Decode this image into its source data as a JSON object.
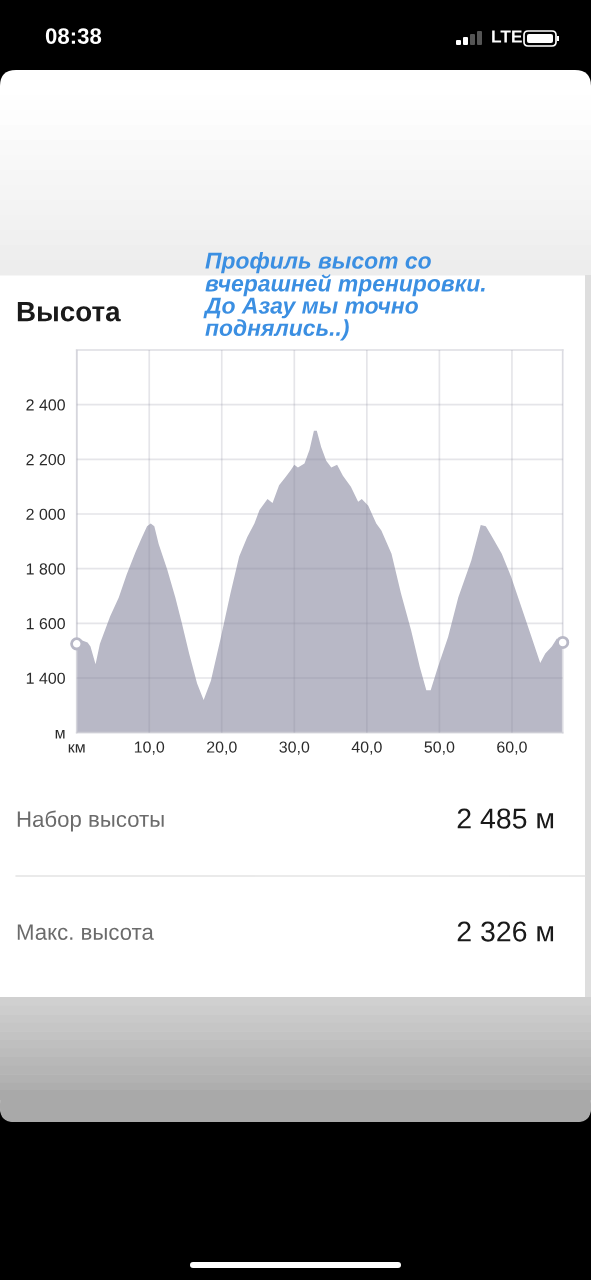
{
  "chart_data": {
    "type": "area",
    "title": "Высота",
    "xlim": [
      0,
      67
    ],
    "ylim": [
      1200,
      2600
    ],
    "xticks": [
      {
        "value": 0,
        "label": "км"
      },
      {
        "value": 10,
        "label": "10,0"
      },
      {
        "value": 20,
        "label": "20,0"
      },
      {
        "value": 30,
        "label": "30,0"
      },
      {
        "value": 40,
        "label": "40,0"
      },
      {
        "value": 50,
        "label": "50,0"
      },
      {
        "value": 60,
        "label": "60,0"
      }
    ],
    "yticks": [
      {
        "value": 1200,
        "label": "м"
      },
      {
        "value": 1400,
        "label": "1 400"
      },
      {
        "value": 1600,
        "label": "1 600"
      },
      {
        "value": 1800,
        "label": "1 800"
      },
      {
        "value": 2000,
        "label": "2 000"
      },
      {
        "value": 2200,
        "label": "2 200"
      },
      {
        "value": 2400,
        "label": "2 400"
      }
    ],
    "grid": true,
    "series": [
      {
        "color": "#b8b8c6",
        "x": [
          0,
          0.5,
          1.5,
          1.9,
          2.6,
          3.2,
          4.6,
          5.8,
          6.9,
          8.1,
          9.0,
          9.7,
          10.2,
          10.7,
          11.3,
          12.5,
          13.6,
          14.5,
          15.5,
          16.6,
          17.5,
          18.5,
          19.8,
          21.2,
          22.4,
          23.5,
          24.5,
          25.2,
          26.3,
          27.0,
          27.9,
          28.8,
          29.5,
          30.0,
          30.5,
          31.4,
          32.1,
          32.7,
          33.1,
          33.7,
          34.4,
          35.1,
          35.9,
          36.7,
          37.8,
          38.8,
          39.3,
          40.2,
          41.3,
          42.0,
          43.4,
          44.7,
          46.1,
          47.3,
          48.2,
          48.8,
          49.8,
          51.2,
          52.6,
          54.4,
          55.7,
          56.4,
          57.2,
          58.6,
          59.9,
          61.3,
          62.7,
          63.9,
          64.6,
          65.5,
          66.2,
          67.0
        ],
        "values": [
          1525,
          1540,
          1530,
          1515,
          1450,
          1525,
          1625,
          1695,
          1780,
          1860,
          1915,
          1955,
          1965,
          1955,
          1890,
          1795,
          1695,
          1600,
          1490,
          1380,
          1320,
          1390,
          1540,
          1710,
          1845,
          1915,
          1965,
          2015,
          2055,
          2040,
          2105,
          2135,
          2160,
          2180,
          2170,
          2185,
          2235,
          2305,
          2305,
          2245,
          2195,
          2170,
          2180,
          2140,
          2100,
          2045,
          2055,
          2030,
          1965,
          1940,
          1855,
          1710,
          1575,
          1440,
          1355,
          1355,
          1440,
          1550,
          1695,
          1830,
          1960,
          1955,
          1920,
          1855,
          1770,
          1660,
          1550,
          1455,
          1490,
          1515,
          1545,
          1530
        ]
      },
      {
        "type": "scatter",
        "color": "#b8b8c6",
        "marker": "circle",
        "x": [
          0,
          67.0
        ],
        "values": [
          1525,
          1530
        ]
      }
    ],
    "annotations": [
      "Профиль высот со\nвчерашней тренировки.\nДо Азау мы точно\nподнялись..)",
      "Набор высоты",
      "2 485 м",
      "Макс. высота",
      "2 326 м",
      "08:38",
      "LTE"
    ]
  }
}
